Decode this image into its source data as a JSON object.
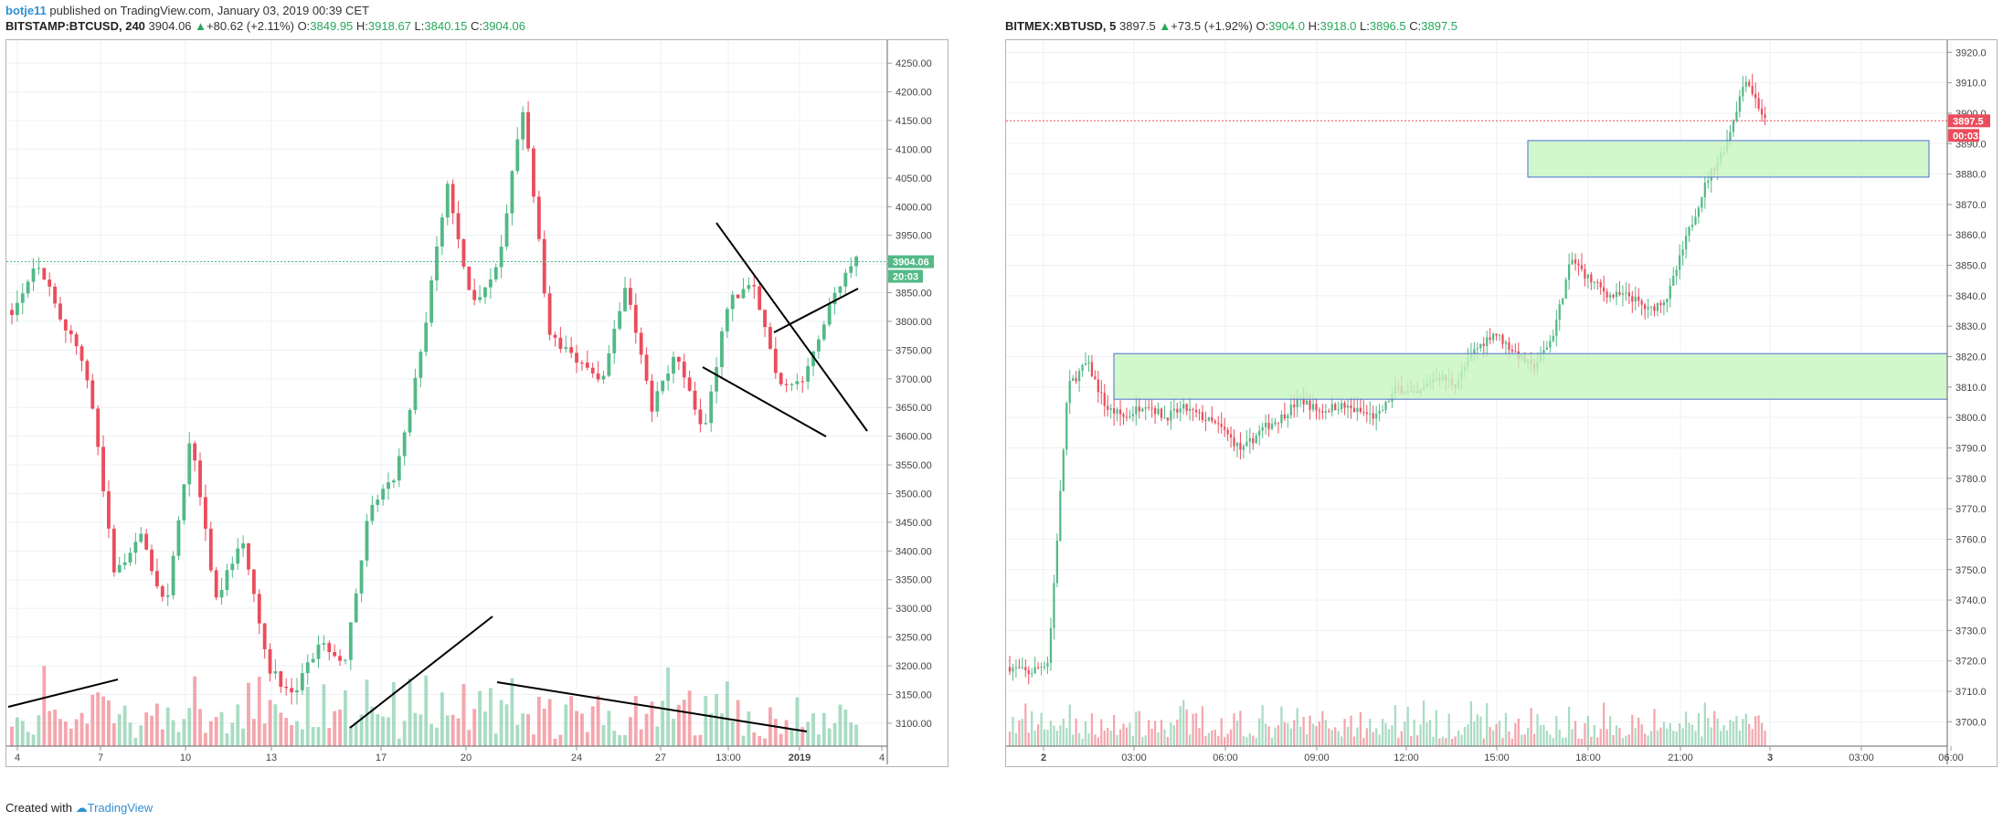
{
  "header": {
    "author": "botje11",
    "published_text": "published on TradingView.com, January 03, 2019 00:39 CET"
  },
  "footer": {
    "created_with": "Created with",
    "brand": "TradingView"
  },
  "colors": {
    "up": "#53b987",
    "down": "#eb4d5c",
    "box_fill": "#c8f5c0",
    "box_stroke": "#4a6fd1",
    "line": "#000000"
  },
  "chart_data": [
    {
      "type": "candlestick",
      "symbol": "BITSTAMP:BTCUSD",
      "interval": "240",
      "legend": {
        "last": "3904.06",
        "change": "+80.62 (+2.11%)",
        "o": "3849.95",
        "h": "3918.67",
        "l": "3840.15",
        "c": "3904.06"
      },
      "ylim": [
        3060,
        4290
      ],
      "y_ticks": [
        "4250.00",
        "4200.00",
        "4150.00",
        "4100.00",
        "4050.00",
        "4000.00",
        "3950.00",
        "3900.00",
        "3850.00",
        "3800.00",
        "3750.00",
        "3700.00",
        "3650.00",
        "3600.00",
        "3550.00",
        "3500.00",
        "3450.00",
        "3400.00",
        "3350.00",
        "3300.00",
        "3250.00",
        "3200.00",
        "3150.00",
        "3100.00"
      ],
      "x_ticks": [
        "4",
        "7",
        "10",
        "13",
        "17",
        "20",
        "24",
        "27",
        "13:00",
        "2019",
        "4"
      ],
      "last_price_label": "3904.06",
      "countdown_label": "20:03",
      "candles_count": 158,
      "key_closes": [
        3820,
        3905,
        3800,
        3700,
        3360,
        3430,
        3300,
        3600,
        3310,
        3430,
        3200,
        3145,
        3240,
        3210,
        3480,
        3530,
        3750,
        4040,
        3830,
        3900,
        4180,
        3770,
        3740,
        3690,
        3870,
        3650,
        3745,
        3600,
        3840,
        3860,
        3690,
        3700,
        3840,
        3904
      ]
    },
    {
      "type": "candlestick",
      "symbol": "BITMEX:XBTUSD",
      "interval": "5",
      "legend": {
        "last": "3897.5",
        "change": "+73.5 (+1.92%)",
        "o": "3904.0",
        "h": "3918.0",
        "l": "3896.5",
        "c": "3897.5"
      },
      "ylim": [
        3692,
        3924
      ],
      "y_ticks": [
        "3920.0",
        "3910.0",
        "3900.0",
        "3890.0",
        "3880.0",
        "3870.0",
        "3860.0",
        "3850.0",
        "3840.0",
        "3830.0",
        "3820.0",
        "3810.0",
        "3800.0",
        "3790.0",
        "3780.0",
        "3770.0",
        "3760.0",
        "3750.0",
        "3740.0",
        "3730.0",
        "3720.0",
        "3710.0",
        "3700.0"
      ],
      "x_ticks": [
        "2",
        "03:00",
        "06:00",
        "09:00",
        "12:00",
        "15:00",
        "18:00",
        "21:00",
        "3",
        "03:00",
        "06:00"
      ],
      "last_price_label": "3897.5",
      "countdown_label": "00:03",
      "candles_count": 240,
      "key_closes": [
        3718,
        3716,
        3720,
        3810,
        3818,
        3803,
        3800,
        3805,
        3800,
        3803,
        3800,
        3796,
        3789,
        3796,
        3800,
        3806,
        3802,
        3804,
        3802,
        3800,
        3810,
        3807,
        3814,
        3811,
        3822,
        3828,
        3822,
        3816,
        3826,
        3852,
        3845,
        3840,
        3840,
        3835,
        3840,
        3860,
        3878,
        3890,
        3912,
        3897.5
      ]
    }
  ]
}
